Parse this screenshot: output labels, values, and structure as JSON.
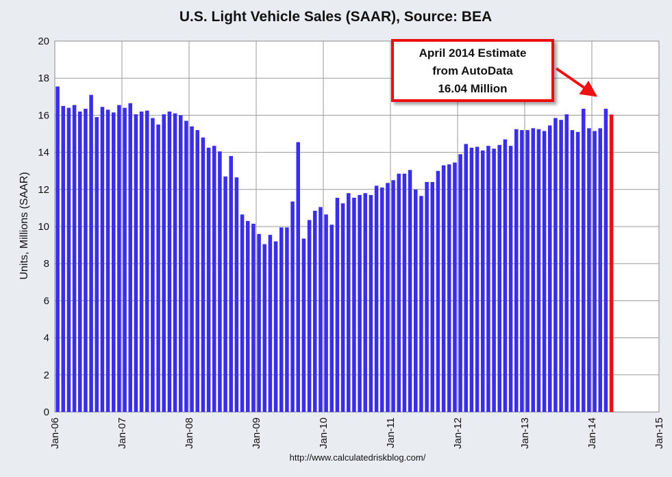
{
  "chart_data": {
    "type": "bar",
    "title": "U.S. Light Vehicle Sales (SAAR), Source: BEA",
    "ylabel": "Units, Millions (SAAR)",
    "xlabel": "",
    "ylim": [
      0,
      20
    ],
    "yticks": [
      "0",
      "2",
      "4",
      "6",
      "8",
      "10",
      "12",
      "14",
      "16",
      "18",
      "20"
    ],
    "xticks": [
      "Jan-06",
      "Jan-07",
      "Jan-08",
      "Jan-09",
      "Jan-10",
      "Jan-11",
      "Jan-12",
      "Jan-13",
      "Jan-14",
      "Jan-15"
    ],
    "x_start": "Jan-06",
    "grid": true,
    "bar_color": "#3b2ee8",
    "highlight_color": "#ee1111",
    "values": [
      17.55,
      16.5,
      16.4,
      16.55,
      16.2,
      16.35,
      17.1,
      15.9,
      16.45,
      16.3,
      16.15,
      16.55,
      16.4,
      16.65,
      16.05,
      16.2,
      16.25,
      15.85,
      15.5,
      16.05,
      16.2,
      16.1,
      16.0,
      15.7,
      15.4,
      15.2,
      14.8,
      14.25,
      14.35,
      14.05,
      12.7,
      13.8,
      12.65,
      10.65,
      10.3,
      10.15,
      9.6,
      9.05,
      9.55,
      9.2,
      9.95,
      9.95,
      11.35,
      14.55,
      9.35,
      10.35,
      10.85,
      11.05,
      10.65,
      10.1,
      11.55,
      11.25,
      11.8,
      11.55,
      11.7,
      11.8,
      11.7,
      12.2,
      12.1,
      12.35,
      12.5,
      12.85,
      12.85,
      13.05,
      12.0,
      11.65,
      12.4,
      12.4,
      13.0,
      13.3,
      13.35,
      13.45,
      13.9,
      14.45,
      14.25,
      14.3,
      14.1,
      14.35,
      14.2,
      14.4,
      14.7,
      14.35,
      15.25,
      15.2,
      15.2,
      15.3,
      15.25,
      15.15,
      15.45,
      15.85,
      15.75,
      16.05,
      15.2,
      15.1,
      16.35,
      15.3,
      15.15,
      15.3,
      16.35,
      16.04
    ],
    "highlight_index": 99,
    "annotation": {
      "lines": [
        "April 2014 Estimate",
        "from AutoData",
        "16.04 Million"
      ],
      "border_color": "#ee1111"
    },
    "source_text": "http://www.calculatedriskblog.com/"
  }
}
